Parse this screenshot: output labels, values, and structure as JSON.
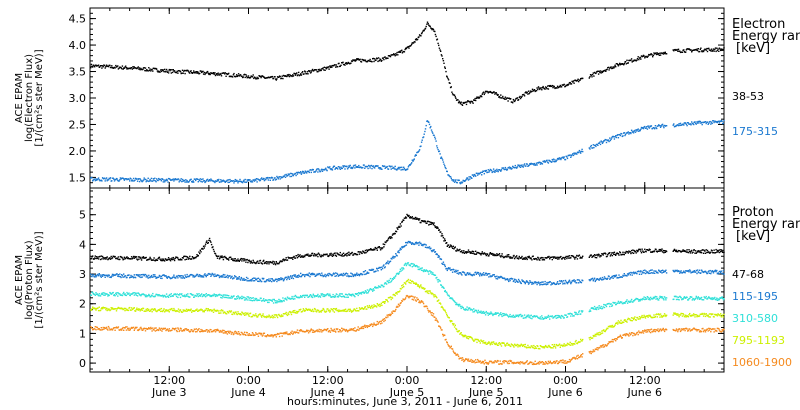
{
  "chart_data": [
    {
      "type": "scatter",
      "panel": "electron",
      "ylabel_lines": [
        "ACE EPAM",
        "log(Electron Flux)",
        "[1/(cm²s ster MeV)]"
      ],
      "ylim": [
        1.3,
        4.7
      ],
      "yticks": [
        "1.5",
        "2.0",
        "2.5",
        "3.0",
        "3.5",
        "4.0",
        "4.5"
      ],
      "ytick_values": [
        1.5,
        2.0,
        2.5,
        3.0,
        3.5,
        4.0,
        4.5
      ],
      "legend_title": [
        "Electron",
        "Energy ran",
        "[keV]"
      ],
      "series": [
        {
          "name": "38-53",
          "color": "#000000",
          "points": [
            [
              0,
              3.62
            ],
            [
              6,
              3.58
            ],
            [
              12,
              3.52
            ],
            [
              18,
              3.48
            ],
            [
              24,
              3.42
            ],
            [
              28,
              3.38
            ],
            [
              32,
              3.48
            ],
            [
              36,
              3.58
            ],
            [
              40,
              3.72
            ],
            [
              44,
              3.74
            ],
            [
              46,
              3.82
            ],
            [
              48,
              3.95
            ],
            [
              50,
              4.2
            ],
            [
              51,
              4.42
            ],
            [
              52,
              4.3
            ],
            [
              53,
              3.9
            ],
            [
              54,
              3.4
            ],
            [
              55,
              3.05
            ],
            [
              56,
              2.9
            ],
            [
              58,
              2.95
            ],
            [
              60,
              3.15
            ],
            [
              62,
              3.05
            ],
            [
              64,
              2.95
            ],
            [
              66,
              3.1
            ],
            [
              68,
              3.2
            ],
            [
              72,
              3.25
            ],
            [
              76,
              3.45
            ],
            [
              80,
              3.65
            ],
            [
              84,
              3.8
            ],
            [
              88,
              3.9
            ],
            [
              92,
              3.92
            ],
            [
              96,
              3.93
            ]
          ]
        },
        {
          "name": "175-315",
          "color": "#1a78d0",
          "points": [
            [
              0,
              1.48
            ],
            [
              6,
              1.47
            ],
            [
              12,
              1.46
            ],
            [
              18,
              1.45
            ],
            [
              24,
              1.44
            ],
            [
              28,
              1.5
            ],
            [
              32,
              1.6
            ],
            [
              36,
              1.68
            ],
            [
              40,
              1.72
            ],
            [
              44,
              1.7
            ],
            [
              48,
              1.68
            ],
            [
              50,
              2.1
            ],
            [
              51,
              2.6
            ],
            [
              52,
              2.3
            ],
            [
              53,
              1.9
            ],
            [
              54,
              1.6
            ],
            [
              55,
              1.45
            ],
            [
              56,
              1.42
            ],
            [
              58,
              1.55
            ],
            [
              60,
              1.62
            ],
            [
              64,
              1.7
            ],
            [
              68,
              1.78
            ],
            [
              72,
              1.88
            ],
            [
              76,
              2.1
            ],
            [
              80,
              2.3
            ],
            [
              84,
              2.45
            ],
            [
              88,
              2.5
            ],
            [
              92,
              2.54
            ],
            [
              96,
              2.56
            ]
          ]
        }
      ]
    },
    {
      "type": "scatter",
      "panel": "proton",
      "ylabel_lines": [
        "ACE EPAM",
        "log(Proton Flux)",
        "[1/(cm²s ster MeV)]"
      ],
      "ylim": [
        -0.3,
        5.9
      ],
      "yticks": [
        "0",
        "1",
        "2",
        "3",
        "4",
        "5"
      ],
      "ytick_values": [
        0,
        1,
        2,
        3,
        4,
        5
      ],
      "legend_title": [
        "Proton",
        "Energy ran",
        "[keV]"
      ],
      "series": [
        {
          "name": "47-68",
          "color": "#000000",
          "points": [
            [
              0,
              3.58
            ],
            [
              6,
              3.56
            ],
            [
              12,
              3.52
            ],
            [
              16,
              3.6
            ],
            [
              18,
              4.2
            ],
            [
              19,
              3.6
            ],
            [
              24,
              3.45
            ],
            [
              28,
              3.4
            ],
            [
              30,
              3.55
            ],
            [
              32,
              3.65
            ],
            [
              40,
              3.7
            ],
            [
              44,
              3.9
            ],
            [
              46,
              4.4
            ],
            [
              48,
              5.0
            ],
            [
              50,
              4.8
            ],
            [
              52,
              4.7
            ],
            [
              53,
              4.4
            ],
            [
              54,
              4.0
            ],
            [
              56,
              3.8
            ],
            [
              60,
              3.7
            ],
            [
              64,
              3.6
            ],
            [
              68,
              3.55
            ],
            [
              72,
              3.58
            ],
            [
              76,
              3.62
            ],
            [
              80,
              3.72
            ],
            [
              84,
              3.82
            ],
            [
              88,
              3.8
            ],
            [
              92,
              3.78
            ],
            [
              96,
              3.79
            ]
          ]
        },
        {
          "name": "115-195",
          "color": "#1a78d0",
          "points": [
            [
              0,
              2.98
            ],
            [
              6,
              2.96
            ],
            [
              12,
              2.93
            ],
            [
              16,
              2.96
            ],
            [
              18,
              3.0
            ],
            [
              24,
              2.85
            ],
            [
              28,
              2.8
            ],
            [
              32,
              3.0
            ],
            [
              40,
              3.0
            ],
            [
              44,
              3.2
            ],
            [
              46,
              3.6
            ],
            [
              48,
              4.1
            ],
            [
              50,
              4.05
            ],
            [
              52,
              3.8
            ],
            [
              53,
              3.5
            ],
            [
              54,
              3.2
            ],
            [
              56,
              3.05
            ],
            [
              60,
              3.0
            ],
            [
              64,
              2.8
            ],
            [
              68,
              2.7
            ],
            [
              72,
              2.75
            ],
            [
              76,
              2.82
            ],
            [
              80,
              2.95
            ],
            [
              84,
              3.1
            ],
            [
              88,
              3.12
            ],
            [
              92,
              3.1
            ],
            [
              96,
              3.08
            ]
          ]
        },
        {
          "name": "310-580",
          "color": "#2fe0d8",
          "points": [
            [
              0,
              2.35
            ],
            [
              6,
              2.34
            ],
            [
              12,
              2.3
            ],
            [
              18,
              2.3
            ],
            [
              24,
              2.2
            ],
            [
              28,
              2.1
            ],
            [
              32,
              2.3
            ],
            [
              40,
              2.3
            ],
            [
              44,
              2.6
            ],
            [
              46,
              2.9
            ],
            [
              48,
              3.4
            ],
            [
              50,
              3.2
            ],
            [
              52,
              3.0
            ],
            [
              53,
              2.7
            ],
            [
              54,
              2.35
            ],
            [
              56,
              1.9
            ],
            [
              58,
              1.8
            ],
            [
              60,
              1.7
            ],
            [
              64,
              1.62
            ],
            [
              68,
              1.55
            ],
            [
              72,
              1.6
            ],
            [
              76,
              1.85
            ],
            [
              80,
              2.05
            ],
            [
              84,
              2.2
            ],
            [
              88,
              2.22
            ],
            [
              92,
              2.21
            ],
            [
              96,
              2.2
            ]
          ]
        },
        {
          "name": "795-1193",
          "color": "#ccf000",
          "points": [
            [
              0,
              1.85
            ],
            [
              6,
              1.84
            ],
            [
              12,
              1.8
            ],
            [
              18,
              1.8
            ],
            [
              24,
              1.65
            ],
            [
              28,
              1.6
            ],
            [
              32,
              1.8
            ],
            [
              40,
              1.8
            ],
            [
              44,
              2.0
            ],
            [
              46,
              2.3
            ],
            [
              48,
              2.8
            ],
            [
              50,
              2.6
            ],
            [
              52,
              2.3
            ],
            [
              53,
              2.0
            ],
            [
              54,
              1.6
            ],
            [
              56,
              1.0
            ],
            [
              58,
              0.8
            ],
            [
              60,
              0.7
            ],
            [
              64,
              0.62
            ],
            [
              68,
              0.55
            ],
            [
              72,
              0.62
            ],
            [
              76,
              0.9
            ],
            [
              80,
              1.4
            ],
            [
              84,
              1.6
            ],
            [
              88,
              1.65
            ],
            [
              92,
              1.64
            ],
            [
              96,
              1.63
            ]
          ]
        },
        {
          "name": "1060-1900",
          "color": "#f58a1e",
          "points": [
            [
              0,
              1.2
            ],
            [
              6,
              1.18
            ],
            [
              12,
              1.15
            ],
            [
              18,
              1.12
            ],
            [
              24,
              1.0
            ],
            [
              28,
              0.95
            ],
            [
              32,
              1.1
            ],
            [
              40,
              1.15
            ],
            [
              44,
              1.4
            ],
            [
              46,
              1.8
            ],
            [
              48,
              2.3
            ],
            [
              50,
              2.1
            ],
            [
              52,
              1.6
            ],
            [
              53,
              1.2
            ],
            [
              54,
              0.7
            ],
            [
              56,
              0.15
            ],
            [
              58,
              0.1
            ],
            [
              60,
              0.05
            ],
            [
              64,
              0.05
            ],
            [
              68,
              0.03
            ],
            [
              72,
              0.08
            ],
            [
              76,
              0.4
            ],
            [
              80,
              0.9
            ],
            [
              84,
              1.1
            ],
            [
              88,
              1.15
            ],
            [
              92,
              1.14
            ],
            [
              96,
              1.13
            ]
          ]
        }
      ]
    }
  ],
  "x_axis": {
    "ticks": [
      {
        "time": "12:00",
        "date": "June 3",
        "hour": 12
      },
      {
        "time": "0:00",
        "date": "June 4",
        "hour": 24
      },
      {
        "time": "12:00",
        "date": "June 4",
        "hour": 36
      },
      {
        "time": "0:00",
        "date": "June 5",
        "hour": 48
      },
      {
        "time": "12:00",
        "date": "June 5",
        "hour": 60
      },
      {
        "time": "0:00",
        "date": "June 6",
        "hour": 72
      },
      {
        "time": "12:00",
        "date": "June 6",
        "hour": 84
      }
    ],
    "xlim": [
      0,
      96
    ],
    "label": "hours:minutes, June  3, 2011 - June  6, 2011"
  }
}
